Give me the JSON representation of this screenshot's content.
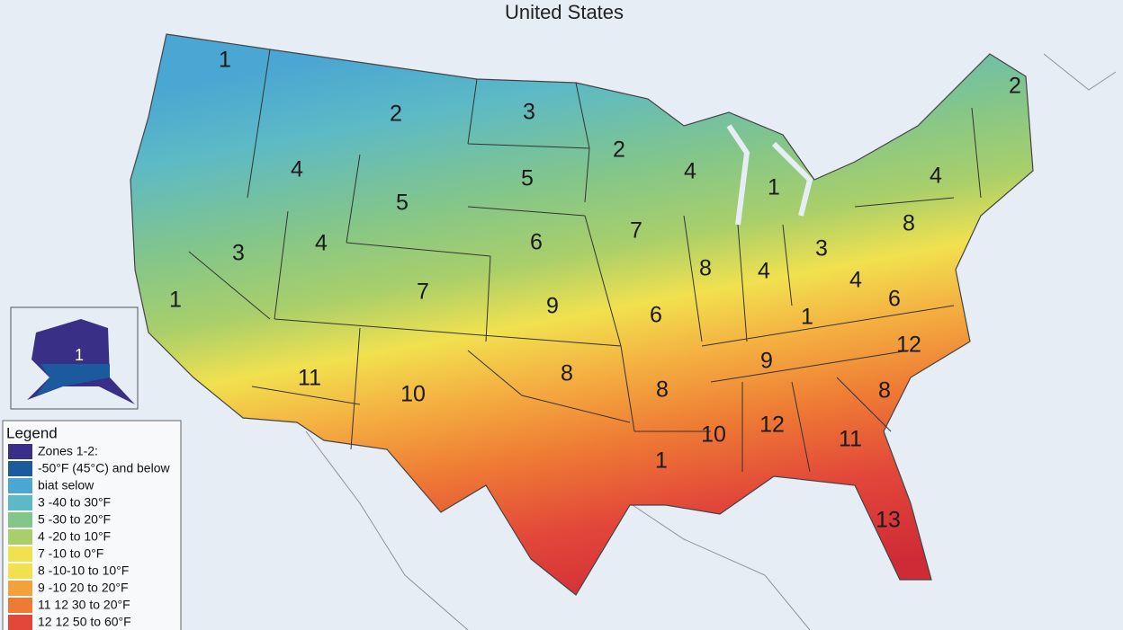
{
  "title": "United States",
  "zone_labels": [
    "1",
    "2",
    "3",
    "2",
    "4",
    "1",
    "2",
    "4",
    "4",
    "5",
    "5",
    "8",
    "3",
    "4",
    "6",
    "7",
    "3",
    "8",
    "4",
    "4",
    "6",
    "1",
    "7",
    "9",
    "6",
    "1",
    "12",
    "9",
    "11",
    "10",
    "8",
    "8",
    "8",
    "10",
    "12",
    "11",
    "1",
    "13"
  ],
  "alaska_label": "1",
  "legend": {
    "title": "Legend",
    "items": [
      {
        "label": "Zones 1-2:",
        "color": "#3a2f86"
      },
      {
        "label": "-50°F (45°C) and below",
        "color": "#1c5a9e"
      },
      {
        "label": "biat selow",
        "color": "#4aa6d2"
      },
      {
        "label": "3 -40 to 30°F",
        "color": "#5cb9c6"
      },
      {
        "label": "5 -30 to 20°F",
        "color": "#84c689"
      },
      {
        "label": "4  -20 to 10°F",
        "color": "#a9cf6a"
      },
      {
        "label": "7 -10 to 0°F",
        "color": "#f1e14f"
      },
      {
        "label": "8 -10-10 to 10°F",
        "color": "#f1e14f"
      },
      {
        "label": "9 -10 20 to 20°F",
        "color": "#f3a23b"
      },
      {
        "label": "11 12 30 to 20°F",
        "color": "#ee7a34"
      },
      {
        "label": "12 12 50 to 60°F",
        "color": "#e2473a"
      }
    ]
  }
}
